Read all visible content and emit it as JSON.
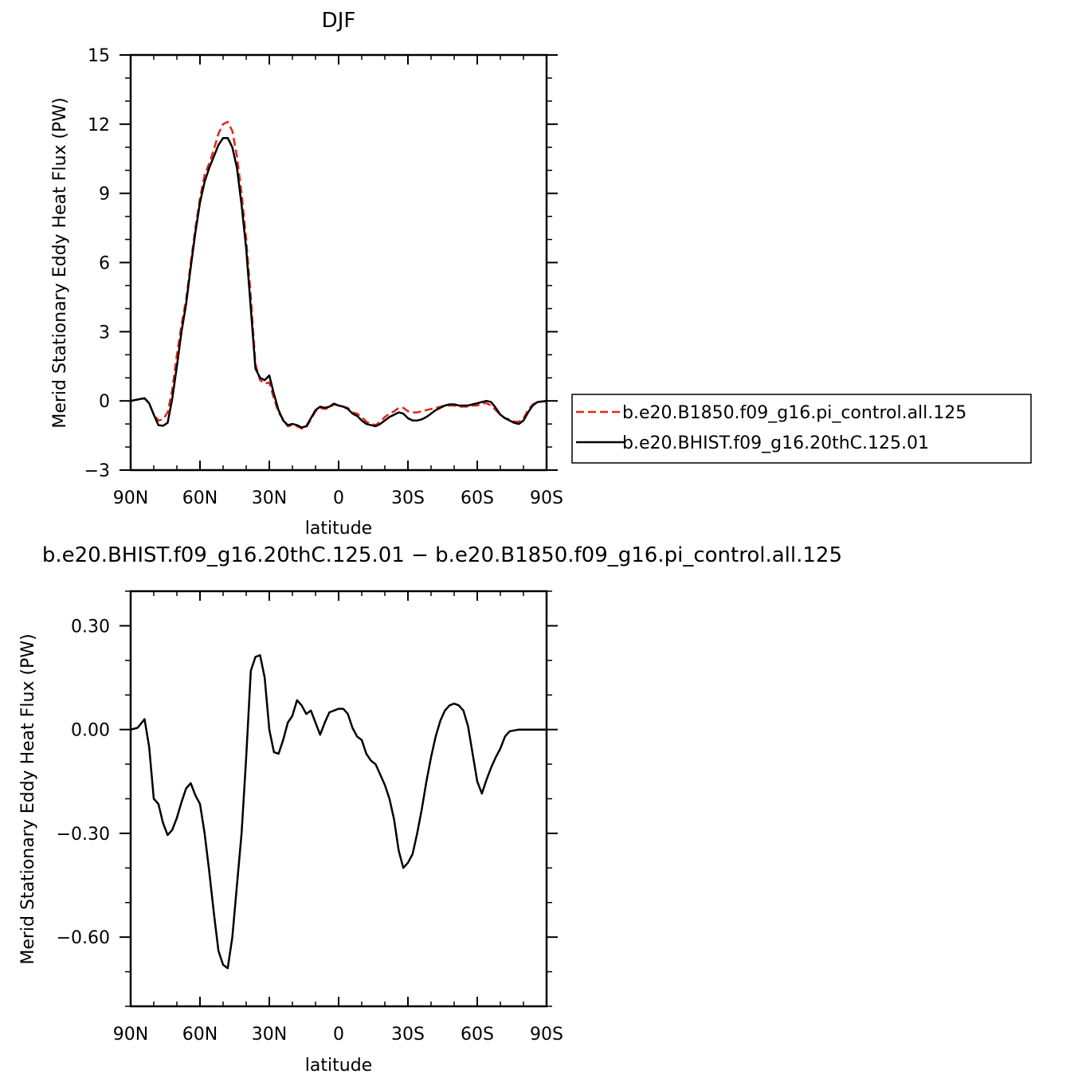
{
  "chart_data": [
    {
      "type": "line",
      "title": "DJF",
      "xlabel": "latitude",
      "ylabel": "Merid Stationary Eddy Heat Flux (PW)",
      "xlim": [
        90,
        -90
      ],
      "ylim": [
        -3,
        15
      ],
      "x_ticks": [
        90,
        60,
        30,
        0,
        -30,
        -60,
        -90
      ],
      "x_tick_labels": [
        "90N",
        "60N",
        "30N",
        "0",
        "30S",
        "60S",
        "90S"
      ],
      "y_ticks": [
        -3,
        0,
        3,
        6,
        9,
        12,
        15
      ],
      "y_tick_labels": [
        "−3",
        "0",
        "3",
        "6",
        "9",
        "12",
        "15"
      ],
      "legend_position": "right",
      "series": [
        {
          "name": "b.e20.B1850.f09_g16.pi_control.all.125",
          "color": "#e3261c",
          "dash": "dashed",
          "points": [
            [
              90,
              0
            ],
            [
              86,
              0.08
            ],
            [
              84,
              0.1
            ],
            [
              82,
              -0.1
            ],
            [
              80,
              -0.6
            ],
            [
              78,
              -0.85
            ],
            [
              76,
              -0.8
            ],
            [
              74,
              -0.5
            ],
            [
              72,
              0.5
            ],
            [
              70,
              2
            ],
            [
              68,
              3.3
            ],
            [
              66,
              4.4
            ],
            [
              64,
              6
            ],
            [
              62,
              7.5
            ],
            [
              60,
              8.8
            ],
            [
              58,
              9.8
            ],
            [
              56,
              10.3
            ],
            [
              54,
              10.9
            ],
            [
              52,
              11.6
            ],
            [
              50,
              12
            ],
            [
              48,
              12.1
            ],
            [
              46,
              11.7
            ],
            [
              44,
              10.6
            ],
            [
              42,
              9
            ],
            [
              40,
              7
            ],
            [
              38,
              4.5
            ],
            [
              36,
              1.6
            ],
            [
              34,
              0.9
            ],
            [
              32,
              0.75
            ],
            [
              30,
              0.8
            ],
            [
              28,
              0.1
            ],
            [
              26,
              -0.5
            ],
            [
              24,
              -0.8
            ],
            [
              22,
              -1.1
            ],
            [
              20,
              -1.05
            ],
            [
              18,
              -1.1
            ],
            [
              16,
              -1.2
            ],
            [
              14,
              -1.15
            ],
            [
              12,
              -0.8
            ],
            [
              10,
              -0.45
            ],
            [
              8,
              -0.3
            ],
            [
              6,
              -0.35
            ],
            [
              4,
              -0.3
            ],
            [
              2,
              -0.15
            ],
            [
              0,
              -0.2
            ],
            [
              -2,
              -0.25
            ],
            [
              -4,
              -0.3
            ],
            [
              -6,
              -0.5
            ],
            [
              -8,
              -0.55
            ],
            [
              -10,
              -0.7
            ],
            [
              -12,
              -0.9
            ],
            [
              -14,
              -1.0
            ],
            [
              -16,
              -1.05
            ],
            [
              -18,
              -0.9
            ],
            [
              -20,
              -0.7
            ],
            [
              -22,
              -0.55
            ],
            [
              -24,
              -0.45
            ],
            [
              -26,
              -0.3
            ],
            [
              -28,
              -0.3
            ],
            [
              -30,
              -0.45
            ],
            [
              -32,
              -0.5
            ],
            [
              -34,
              -0.5
            ],
            [
              -36,
              -0.45
            ],
            [
              -38,
              -0.4
            ],
            [
              -40,
              -0.35
            ],
            [
              -42,
              -0.3
            ],
            [
              -44,
              -0.25
            ],
            [
              -46,
              -0.2
            ],
            [
              -48,
              -0.2
            ],
            [
              -50,
              -0.2
            ],
            [
              -52,
              -0.25
            ],
            [
              -54,
              -0.25
            ],
            [
              -56,
              -0.25
            ],
            [
              -58,
              -0.2
            ],
            [
              -60,
              -0.2
            ],
            [
              -62,
              -0.1
            ],
            [
              -64,
              -0.1
            ],
            [
              -66,
              -0.2
            ],
            [
              -68,
              -0.4
            ],
            [
              -70,
              -0.6
            ],
            [
              -72,
              -0.75
            ],
            [
              -74,
              -0.8
            ],
            [
              -76,
              -0.9
            ],
            [
              -78,
              -0.9
            ],
            [
              -80,
              -0.75
            ],
            [
              -82,
              -0.4
            ],
            [
              -84,
              -0.15
            ],
            [
              -86,
              -0.05
            ],
            [
              -90,
              0
            ]
          ]
        },
        {
          "name": "b.e20.BHIST.f09_g16.20thC.125.01",
          "color": "#000000",
          "dash": "solid",
          "points": [
            [
              90,
              0
            ],
            [
              86,
              0.08
            ],
            [
              84,
              0.12
            ],
            [
              82,
              -0.1
            ],
            [
              80,
              -0.6
            ],
            [
              78,
              -1.05
            ],
            [
              76,
              -1.08
            ],
            [
              74,
              -0.95
            ],
            [
              72,
              0.1
            ],
            [
              70,
              1.5
            ],
            [
              68,
              3.0
            ],
            [
              66,
              4.2
            ],
            [
              64,
              5.8
            ],
            [
              62,
              7.3
            ],
            [
              60,
              8.6
            ],
            [
              58,
              9.5
            ],
            [
              56,
              10.1
            ],
            [
              54,
              10.6
            ],
            [
              52,
              11.1
            ],
            [
              50,
              11.4
            ],
            [
              48,
              11.4
            ],
            [
              46,
              11
            ],
            [
              44,
              10.1
            ],
            [
              42,
              8.5
            ],
            [
              40,
              6.6
            ],
            [
              38,
              4
            ],
            [
              36,
              1.4
            ],
            [
              34,
              1.0
            ],
            [
              32,
              0.9
            ],
            [
              30,
              1.1
            ],
            [
              28,
              0.3
            ],
            [
              26,
              -0.4
            ],
            [
              24,
              -0.85
            ],
            [
              22,
              -1.05
            ],
            [
              20,
              -1.0
            ],
            [
              18,
              -1.05
            ],
            [
              16,
              -1.15
            ],
            [
              14,
              -1.1
            ],
            [
              12,
              -0.75
            ],
            [
              10,
              -0.4
            ],
            [
              8,
              -0.25
            ],
            [
              6,
              -0.3
            ],
            [
              4,
              -0.25
            ],
            [
              2,
              -0.12
            ],
            [
              0,
              -0.2
            ],
            [
              -2,
              -0.25
            ],
            [
              -4,
              -0.35
            ],
            [
              -6,
              -0.55
            ],
            [
              -8,
              -0.65
            ],
            [
              -10,
              -0.85
            ],
            [
              -12,
              -1.0
            ],
            [
              -14,
              -1.05
            ],
            [
              -16,
              -1.1
            ],
            [
              -18,
              -1.0
            ],
            [
              -20,
              -0.85
            ],
            [
              -22,
              -0.7
            ],
            [
              -24,
              -0.6
            ],
            [
              -26,
              -0.5
            ],
            [
              -28,
              -0.55
            ],
            [
              -30,
              -0.75
            ],
            [
              -32,
              -0.85
            ],
            [
              -34,
              -0.85
            ],
            [
              -36,
              -0.8
            ],
            [
              -38,
              -0.7
            ],
            [
              -40,
              -0.55
            ],
            [
              -42,
              -0.4
            ],
            [
              -44,
              -0.3
            ],
            [
              -46,
              -0.2
            ],
            [
              -48,
              -0.15
            ],
            [
              -50,
              -0.15
            ],
            [
              -52,
              -0.2
            ],
            [
              -54,
              -0.2
            ],
            [
              -56,
              -0.2
            ],
            [
              -58,
              -0.15
            ],
            [
              -60,
              -0.1
            ],
            [
              -62,
              -0.05
            ],
            [
              -64,
              0
            ],
            [
              -66,
              -0.05
            ],
            [
              -68,
              -0.3
            ],
            [
              -70,
              -0.6
            ],
            [
              -72,
              -0.75
            ],
            [
              -74,
              -0.85
            ],
            [
              -76,
              -0.95
            ],
            [
              -78,
              -1.0
            ],
            [
              -80,
              -0.85
            ],
            [
              -82,
              -0.5
            ],
            [
              -84,
              -0.2
            ],
            [
              -86,
              -0.05
            ],
            [
              -90,
              0
            ]
          ]
        }
      ]
    },
    {
      "type": "line",
      "title": "b.e20.BHIST.f09_g16.20thC.125.01 − b.e20.B1850.f09_g16.pi_control.all.125",
      "xlabel": "latitude",
      "ylabel": "Merid Stationary Eddy Heat Flux (PW)",
      "xlim": [
        90,
        -90
      ],
      "ylim": [
        -0.8,
        0.4
      ],
      "x_ticks": [
        90,
        60,
        30,
        0,
        -30,
        -60,
        -90
      ],
      "x_tick_labels": [
        "90N",
        "60N",
        "30N",
        "0",
        "30S",
        "60S",
        "90S"
      ],
      "y_ticks": [
        -0.6,
        -0.3,
        0,
        0.3
      ],
      "y_tick_labels": [
        "−0.60",
        "−0.30",
        "0.00",
        "0.30"
      ],
      "series": [
        {
          "color": "#000000",
          "dash": "solid",
          "points": [
            [
              90,
              0
            ],
            [
              87,
              0.005
            ],
            [
              84,
              0.03
            ],
            [
              82,
              -0.05
            ],
            [
              80,
              -0.2
            ],
            [
              78,
              -0.215
            ],
            [
              76,
              -0.27
            ],
            [
              74,
              -0.305
            ],
            [
              72,
              -0.29
            ],
            [
              70,
              -0.255
            ],
            [
              68,
              -0.21
            ],
            [
              66,
              -0.17
            ],
            [
              64,
              -0.155
            ],
            [
              62,
              -0.19
            ],
            [
              60,
              -0.215
            ],
            [
              58,
              -0.3
            ],
            [
              56,
              -0.41
            ],
            [
              54,
              -0.53
            ],
            [
              52,
              -0.64
            ],
            [
              50,
              -0.68
            ],
            [
              48,
              -0.69
            ],
            [
              46,
              -0.6
            ],
            [
              44,
              -0.45
            ],
            [
              42,
              -0.3
            ],
            [
              40,
              -0.08
            ],
            [
              38,
              0.17
            ],
            [
              36,
              0.21
            ],
            [
              34,
              0.215
            ],
            [
              32,
              0.15
            ],
            [
              30,
              0.0
            ],
            [
              28,
              -0.065
            ],
            [
              26,
              -0.07
            ],
            [
              24,
              -0.03
            ],
            [
              22,
              0.02
            ],
            [
              20,
              0.04
            ],
            [
              18,
              0.085
            ],
            [
              16,
              0.07
            ],
            [
              14,
              0.045
            ],
            [
              12,
              0.055
            ],
            [
              10,
              0.02
            ],
            [
              8,
              -0.015
            ],
            [
              6,
              0.02
            ],
            [
              4,
              0.05
            ],
            [
              2,
              0.055
            ],
            [
              0,
              0.06
            ],
            [
              -2,
              0.06
            ],
            [
              -4,
              0.045
            ],
            [
              -6,
              0.005
            ],
            [
              -8,
              -0.02
            ],
            [
              -10,
              -0.03
            ],
            [
              -12,
              -0.07
            ],
            [
              -14,
              -0.09
            ],
            [
              -16,
              -0.1
            ],
            [
              -18,
              -0.13
            ],
            [
              -20,
              -0.16
            ],
            [
              -22,
              -0.2
            ],
            [
              -24,
              -0.26
            ],
            [
              -26,
              -0.35
            ],
            [
              -28,
              -0.4
            ],
            [
              -30,
              -0.385
            ],
            [
              -32,
              -0.36
            ],
            [
              -34,
              -0.3
            ],
            [
              -36,
              -0.23
            ],
            [
              -38,
              -0.15
            ],
            [
              -40,
              -0.08
            ],
            [
              -42,
              -0.02
            ],
            [
              -44,
              0.025
            ],
            [
              -46,
              0.055
            ],
            [
              -48,
              0.07
            ],
            [
              -50,
              0.075
            ],
            [
              -52,
              0.07
            ],
            [
              -54,
              0.055
            ],
            [
              -56,
              0.01
            ],
            [
              -58,
              -0.07
            ],
            [
              -60,
              -0.15
            ],
            [
              -62,
              -0.185
            ],
            [
              -64,
              -0.145
            ],
            [
              -66,
              -0.11
            ],
            [
              -68,
              -0.08
            ],
            [
              -70,
              -0.055
            ],
            [
              -72,
              -0.02
            ],
            [
              -74,
              -0.005
            ],
            [
              -78,
              0
            ],
            [
              -90,
              0
            ]
          ]
        }
      ]
    }
  ]
}
